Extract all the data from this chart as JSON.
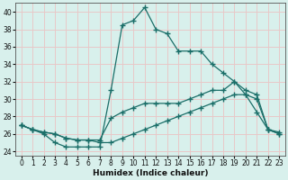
{
  "xlabel": "Humidex (Indice chaleur)",
  "background_color": "#d8f0ec",
  "grid_color": "#e8c8c8",
  "line_color": "#1a6e68",
  "xlim": [
    -0.5,
    23.5
  ],
  "ylim": [
    23.5,
    41.0
  ],
  "xticks": [
    0,
    1,
    2,
    3,
    4,
    5,
    6,
    7,
    8,
    9,
    10,
    11,
    12,
    13,
    14,
    15,
    16,
    17,
    18,
    19,
    20,
    21,
    22,
    23
  ],
  "yticks": [
    24,
    26,
    28,
    30,
    32,
    34,
    36,
    38,
    40
  ],
  "line1_y": [
    27.0,
    26.5,
    26.0,
    25.0,
    24.5,
    24.5,
    24.5,
    24.5,
    31.0,
    38.5,
    39.0,
    40.5,
    38.0,
    37.5,
    35.5,
    35.5,
    35.5,
    34.0,
    33.0,
    32.0,
    30.5,
    28.5,
    26.5,
    26.0
  ],
  "line2_y": [
    27.0,
    26.5,
    26.2,
    26.0,
    25.5,
    25.3,
    25.3,
    25.3,
    27.8,
    28.5,
    29.0,
    29.5,
    29.5,
    29.5,
    29.5,
    30.0,
    30.5,
    31.0,
    31.0,
    32.0,
    31.0,
    30.5,
    26.5,
    26.0
  ],
  "line3_y": [
    27.0,
    26.5,
    26.2,
    26.0,
    25.5,
    25.3,
    25.3,
    25.0,
    25.0,
    25.5,
    26.0,
    26.5,
    27.0,
    27.5,
    28.0,
    28.5,
    29.0,
    29.5,
    30.0,
    30.5,
    30.5,
    30.0,
    26.5,
    26.2
  ]
}
